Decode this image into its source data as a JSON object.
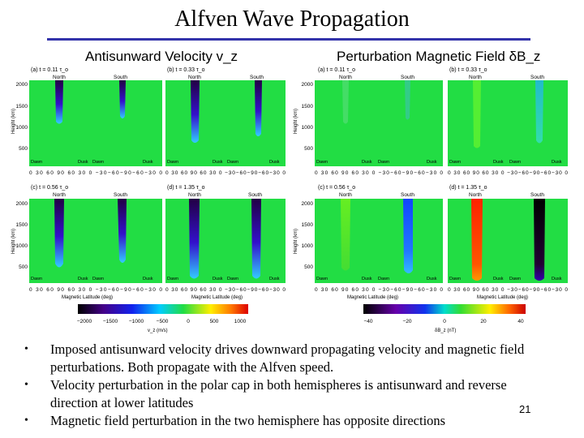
{
  "slide": {
    "title": "Alfven Wave Propagation",
    "page_number": "21",
    "bullets": [
      "Imposed antisunward velocity drives downward propagating velocity and magnetic field perturbations. Both propagate with the Alfven speed.",
      "Velocity perturbation in the polar cap in both hemispheres is antisunward and reverse direction at lower latitudes",
      "Magnetic field perturbation in the two hemisphere has opposite directions"
    ]
  },
  "figure": {
    "left_group_title": "Antisunward Velocity v_z",
    "right_group_title": "Perturbation Magnetic Field δB_z",
    "panel_labels": [
      "(a) t = 0.11 τ_o",
      "(b) t = 0.33 τ_o",
      "(c) t = 0.56 τ_o",
      "(d) t = 1.35 τ_o"
    ],
    "hemisphere_labels": [
      "North",
      "South"
    ],
    "y_axis_label": "Height (km)",
    "y_ticks": [
      "2000",
      "1500",
      "1000",
      "500"
    ],
    "x_ticks_text": "0 30 60 90 60 30 0 −30−60−90−60−30 0",
    "x_axis_label": "Magnetic Latitude (deg)",
    "local_time_labels": [
      "Dawn",
      "Dusk",
      "Dawn",
      "Dusk"
    ],
    "left_colorbar": {
      "ticks": [
        "−2000",
        "−1500",
        "−1000",
        "−500",
        "0",
        "500",
        "1000"
      ],
      "label": "v_z (m/s)"
    },
    "right_colorbar": {
      "ticks": [
        "−40",
        "−20",
        "0",
        "20",
        "40"
      ],
      "label": "δB_z (nT)"
    },
    "colors": {
      "background_field": "#22dd44",
      "title_rule": "#3333aa"
    }
  }
}
